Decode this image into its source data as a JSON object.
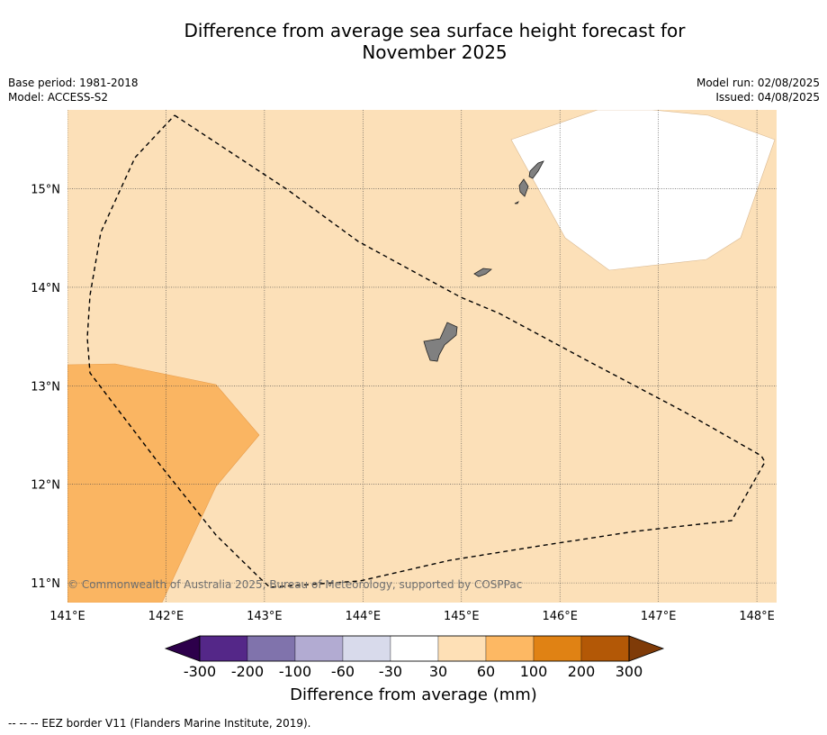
{
  "title": {
    "line1": "Difference from average sea surface height forecast for",
    "line2": "November 2025"
  },
  "meta": {
    "base_period": "Base period: 1981-2018",
    "model": "Model: ACCESS-S2",
    "model_run": "Model run: 02/08/2025",
    "issued": "Issued: 04/08/2025"
  },
  "map": {
    "lon_range": [
      141.0,
      148.2
    ],
    "lat_range": [
      10.8,
      15.8
    ],
    "lon_ticks": [
      "141°E",
      "142°E",
      "143°E",
      "144°E",
      "145°E",
      "146°E",
      "147°E",
      "148°E"
    ],
    "lat_ticks": [
      "11°N",
      "12°N",
      "13°N",
      "14°N",
      "15°N"
    ],
    "copyright": "© Commonwealth of Australia 2025, Bureau of Meteorology, supported by COSPPac",
    "background_class": "30 to 60 mm",
    "colors": {
      "land": "#808080",
      "light_orange": "#fce0b8",
      "mid_orange": "#fab562",
      "white_region": "#ffffff"
    }
  },
  "colorbar": {
    "ticks": [
      "-300",
      "-200",
      "-100",
      "-60",
      "-30",
      "30",
      "60",
      "100",
      "200",
      "300"
    ],
    "colors": [
      "#2d004b",
      "#542788",
      "#8073ac",
      "#b2abd2",
      "#d8daeb",
      "#ffffff",
      "#fee0b6",
      "#fdb863",
      "#e08214",
      "#b35806",
      "#7f3b08"
    ],
    "label": "Difference from average (mm)"
  },
  "footnote": "--  --  -- EEZ border V11 (Flanders Marine Institute, 2019)."
}
